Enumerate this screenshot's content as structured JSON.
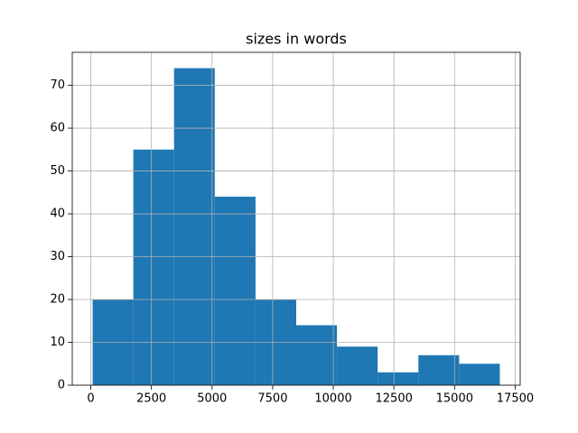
{
  "chart_data": {
    "type": "histogram",
    "title": "sizes in words",
    "bins": [
      76,
      1755,
      3434,
      5113,
      6792,
      8471,
      10150,
      11829,
      13508,
      15187,
      16866
    ],
    "values": [
      20,
      55,
      74,
      44,
      20,
      14,
      9,
      3,
      7,
      5
    ],
    "color": "#1f77b4",
    "xlim": [
      -764,
      17706
    ],
    "ylim": [
      0,
      77.7
    ],
    "xticks": [
      0,
      2500,
      5000,
      7500,
      10000,
      12500,
      15000,
      17500
    ],
    "yticks": [
      0,
      10,
      20,
      30,
      40,
      50,
      60,
      70
    ],
    "grid": true
  }
}
